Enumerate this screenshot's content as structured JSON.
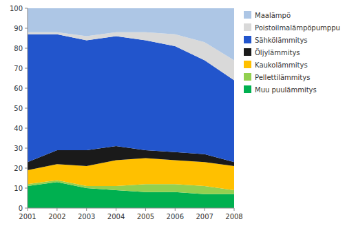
{
  "chart_data": {
    "type": "area",
    "stacked": true,
    "x": [
      2001,
      2002,
      2003,
      2004,
      2005,
      2006,
      2007,
      2008
    ],
    "series": [
      {
        "name": "Muu puulämmitys",
        "color": "#00b050",
        "values": [
          11,
          13,
          10,
          9,
          8,
          8,
          7,
          7
        ]
      },
      {
        "name": "Pellettilämmitys",
        "color": "#92d050",
        "values": [
          1,
          1,
          1,
          2,
          4,
          4,
          4,
          2
        ]
      },
      {
        "name": "Kaukolämmitys",
        "color": "#ffc000",
        "values": [
          7,
          8,
          10,
          13,
          13,
          12,
          12,
          12
        ]
      },
      {
        "name": "Öljylämmitys",
        "color": "#1a1a1a",
        "values": [
          4,
          7,
          8,
          7,
          4,
          4,
          4,
          2
        ]
      },
      {
        "name": "Sähkölämmitys",
        "color": "#2255cc",
        "values": [
          64,
          58,
          55,
          55,
          55,
          53,
          47,
          41
        ]
      },
      {
        "name": "Poistoilmalämpöpumppu",
        "color": "#d9d9d9",
        "values": [
          1,
          1,
          2,
          2,
          4,
          6,
          9,
          10
        ]
      },
      {
        "name": "Maalämpö",
        "color": "#adc6e5",
        "values": [
          12,
          12,
          14,
          12,
          12,
          13,
          17,
          26
        ]
      }
    ],
    "xlim": [
      2001,
      2008
    ],
    "xticks": [
      2001,
      2002,
      2003,
      2004,
      2005,
      2006,
      2007,
      2008
    ],
    "ylim": [
      0,
      100
    ],
    "yticks": [
      0,
      10,
      20,
      30,
      40,
      50,
      60,
      70,
      80,
      90,
      100
    ],
    "grid": false,
    "legend": "right"
  }
}
